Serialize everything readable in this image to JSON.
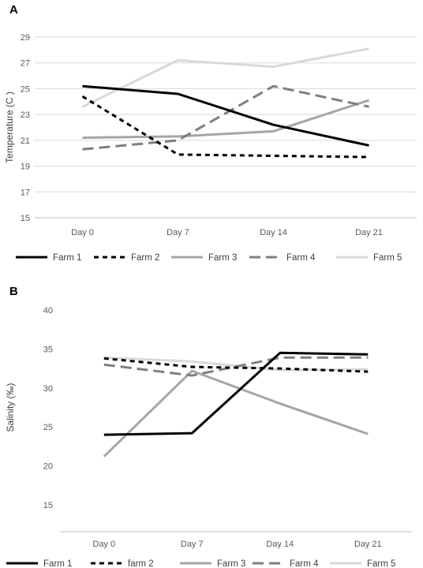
{
  "chart_data": [
    {
      "type": "line",
      "panel_label": "A",
      "categories": [
        "Day 0",
        "Day 7",
        "Day 14",
        "Day 21"
      ],
      "ylabel": "Temperature (C )",
      "ylim": [
        15,
        29
      ],
      "yticks": [
        15,
        17,
        19,
        21,
        23,
        25,
        27,
        29
      ],
      "grid": true,
      "legend_position": "bottom",
      "series": [
        {
          "name": "Farm 1",
          "values": [
            25.2,
            24.6,
            22.2,
            20.6
          ],
          "color": "#000000",
          "dash": "solid"
        },
        {
          "name": "Farm 2",
          "values": [
            24.4,
            19.9,
            19.8,
            19.7
          ],
          "color": "#000000",
          "dash": "short"
        },
        {
          "name": "Farm 3",
          "values": [
            21.2,
            21.3,
            21.7,
            24.1
          ],
          "color": "#a6a6a6",
          "dash": "solid"
        },
        {
          "name": "Farm 4",
          "values": [
            20.3,
            21.0,
            25.2,
            23.6
          ],
          "color": "#7f7f7f",
          "dash": "long"
        },
        {
          "name": "Farm 5",
          "values": [
            23.6,
            27.2,
            26.7,
            28.1
          ],
          "color": "#d9d9d9",
          "dash": "solid"
        }
      ]
    },
    {
      "type": "line",
      "panel_label": "B",
      "categories": [
        "Day 0",
        "Day 7",
        "Day 14",
        "Day 21"
      ],
      "ylabel": "Salinity  (‰)",
      "ylim": [
        15,
        40
      ],
      "yticks": [
        15,
        20,
        25,
        30,
        35,
        40
      ],
      "grid": false,
      "legend_position": "bottom",
      "series": [
        {
          "name": "Farm 1",
          "values": [
            24.0,
            24.2,
            34.5,
            34.3
          ],
          "color": "#000000",
          "dash": "solid"
        },
        {
          "name": "farm 2",
          "values": [
            33.8,
            32.7,
            32.5,
            32.1
          ],
          "color": "#000000",
          "dash": "short"
        },
        {
          "name": "Farm 3",
          "values": [
            21.2,
            32.2,
            28.0,
            24.1
          ],
          "color": "#a6a6a6",
          "dash": "solid"
        },
        {
          "name": "Farm 4",
          "values": [
            33.0,
            31.6,
            33.9,
            33.9
          ],
          "color": "#7f7f7f",
          "dash": "long"
        },
        {
          "name": "Farm 5",
          "values": [
            33.9,
            33.4,
            32.3,
            32.4
          ],
          "color": "#d9d9d9",
          "dash": "solid"
        }
      ]
    }
  ]
}
